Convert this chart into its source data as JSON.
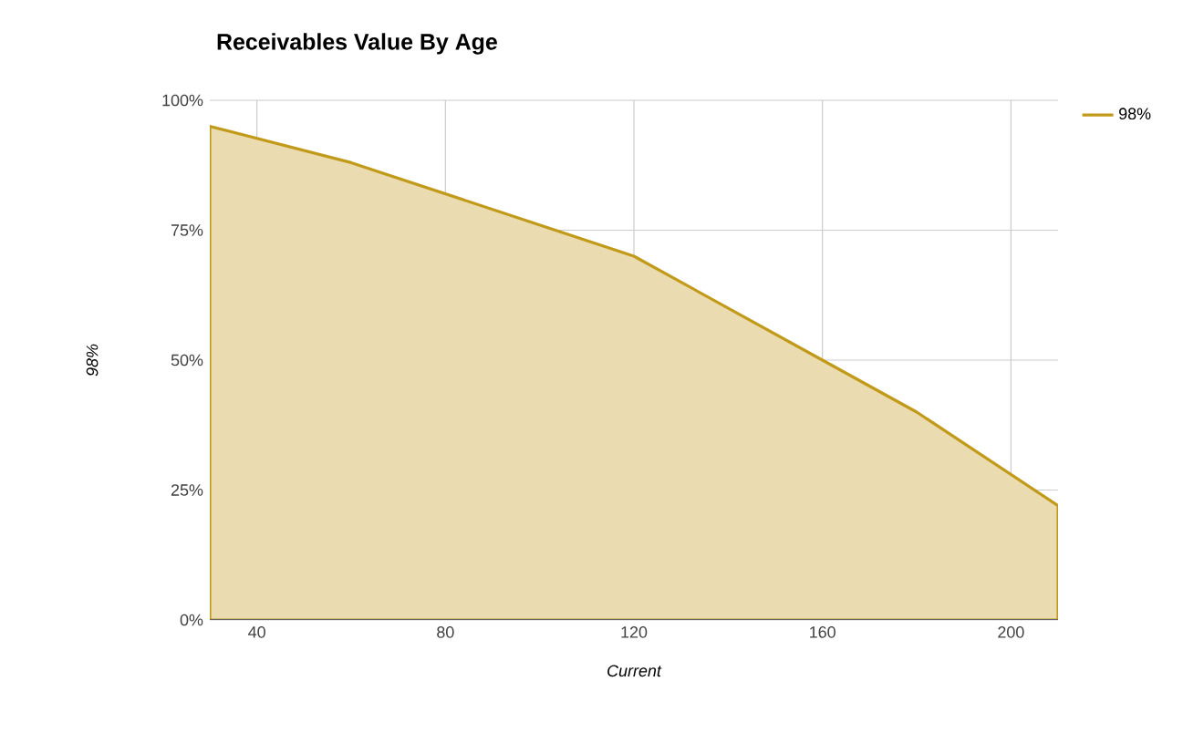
{
  "chart_data": {
    "type": "area",
    "title": "Receivables Value By Age",
    "xlabel": "Current",
    "ylabel": "98%",
    "x": [
      30,
      60,
      120,
      160,
      180,
      210
    ],
    "series": [
      {
        "name": "98%",
        "color": "#eadcb0",
        "values": [
          95,
          88,
          70,
          50,
          40,
          22
        ]
      }
    ],
    "xlim": [
      30,
      210
    ],
    "xticks": [
      40,
      80,
      120,
      160,
      200
    ],
    "ylim": [
      0,
      100
    ],
    "yticks": [
      {
        "value": 0,
        "label": "0%"
      },
      {
        "value": 25,
        "label": "25%"
      },
      {
        "value": 50,
        "label": "50%"
      },
      {
        "value": 75,
        "label": "75%"
      },
      {
        "value": 100,
        "label": "100%"
      }
    ],
    "grid": true,
    "legend": "top right",
    "marker": "none",
    "line_style": "solid"
  }
}
